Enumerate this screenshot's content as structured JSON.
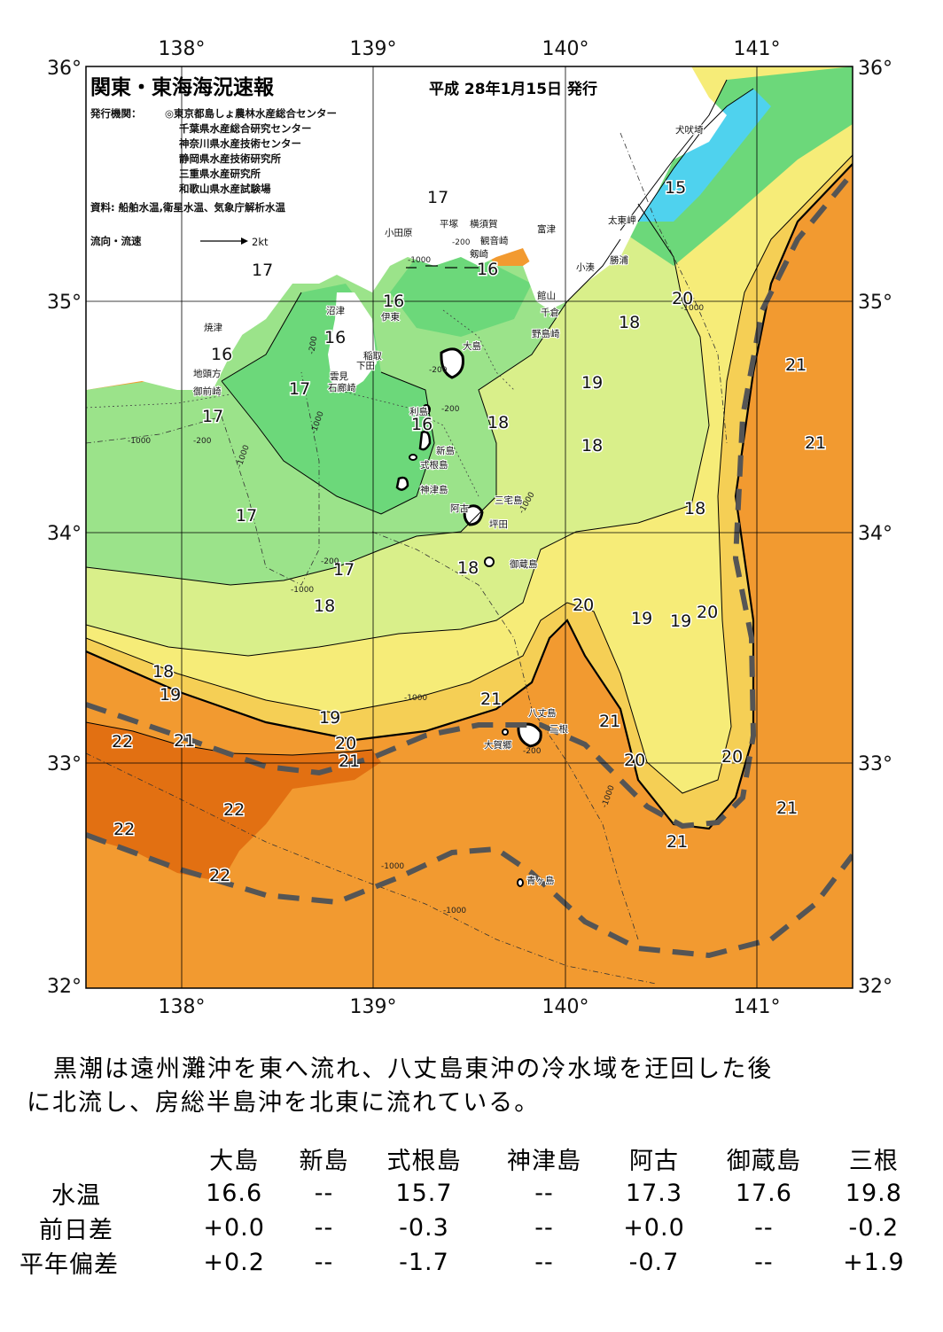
{
  "header": {
    "title": "関東・東海海況速報",
    "date": "平成 28年1月15日 発行",
    "issuer_label": "発行機関：",
    "issuers": [
      "◎東京都島しょ農林水産総合センター",
      "千葉県水産総合研究センター",
      "神奈川県水産技術センター",
      "静岡県水産技術研究所",
      "三重県水産研究所",
      "和歌山県水産試験場"
    ],
    "sources": "資料: 船舶水温,衛星水温、気象庁解析水温",
    "legend_label": "流向・流速",
    "legend_speed": "2kt"
  },
  "axes": {
    "lon_labels": [
      "138°",
      "139°",
      "140°",
      "141°"
    ],
    "lat_labels": [
      "36°",
      "35°",
      "34°",
      "33°",
      "32°"
    ]
  },
  "places": [
    {
      "name": "犬吠埼"
    },
    {
      "name": "太東岬"
    },
    {
      "name": "勝浦"
    },
    {
      "name": "小湊"
    },
    {
      "name": "富津"
    },
    {
      "name": "横須賀"
    },
    {
      "name": "平塚"
    },
    {
      "name": "観音崎"
    },
    {
      "name": "剱崎"
    },
    {
      "name": "小田原"
    },
    {
      "name": "館山"
    },
    {
      "name": "千倉"
    },
    {
      "name": "野島崎"
    },
    {
      "name": "沼津"
    },
    {
      "name": "伊東"
    },
    {
      "name": "稲取"
    },
    {
      "name": "下田"
    },
    {
      "name": "雲見"
    },
    {
      "name": "石廊崎"
    },
    {
      "name": "焼津"
    },
    {
      "name": "地頭方"
    },
    {
      "name": "御前崎"
    },
    {
      "name": "大島"
    },
    {
      "name": "利島"
    },
    {
      "name": "新島"
    },
    {
      "name": "式根島"
    },
    {
      "name": "神津島"
    },
    {
      "name": "阿古"
    },
    {
      "name": "三宅島"
    },
    {
      "name": "坪田"
    },
    {
      "name": "御蔵島"
    },
    {
      "name": "八丈島"
    },
    {
      "name": "三根"
    },
    {
      "name": "大賀郷"
    },
    {
      "name": "青ヶ島"
    }
  ],
  "isotherm_labels": [
    "15",
    "16",
    "17",
    "18",
    "19",
    "20",
    "21",
    "22"
  ],
  "depth_label": "-1000",
  "depth_label_200": "-200",
  "colors": {
    "t15": "#4fd2ee",
    "t16": "#6cd87a",
    "t17": "#9be38a",
    "t18": "#d9ef8a",
    "t19": "#f6ec78",
    "t20": "#f5cf55",
    "t21": "#f29a30",
    "t22": "#e27012",
    "kuroshio": "#555555"
  },
  "summary": {
    "line1": "黒潮は遠州灘沖を東へ流れ、八丈島東沖の冷水域を迂回した後",
    "line2": "に北流し、房総半島沖を北東に流れている。"
  },
  "table": {
    "headers": [
      "大島",
      "新島",
      "式根島",
      "神津島",
      "阿古",
      "御蔵島",
      "三根"
    ],
    "rows": [
      {
        "label": "水温",
        "values": [
          "16.6",
          "--",
          "15.7",
          "--",
          "17.3",
          "17.6",
          "19.8"
        ]
      },
      {
        "label": "前日差",
        "values": [
          "+0.0",
          "--",
          "-0.3",
          "--",
          "+0.0",
          "--",
          "-0.2"
        ]
      },
      {
        "label": "平年偏差",
        "values": [
          "+0.2",
          "--",
          "-1.7",
          "--",
          "-0.7",
          "--",
          "+1.9"
        ]
      }
    ]
  }
}
